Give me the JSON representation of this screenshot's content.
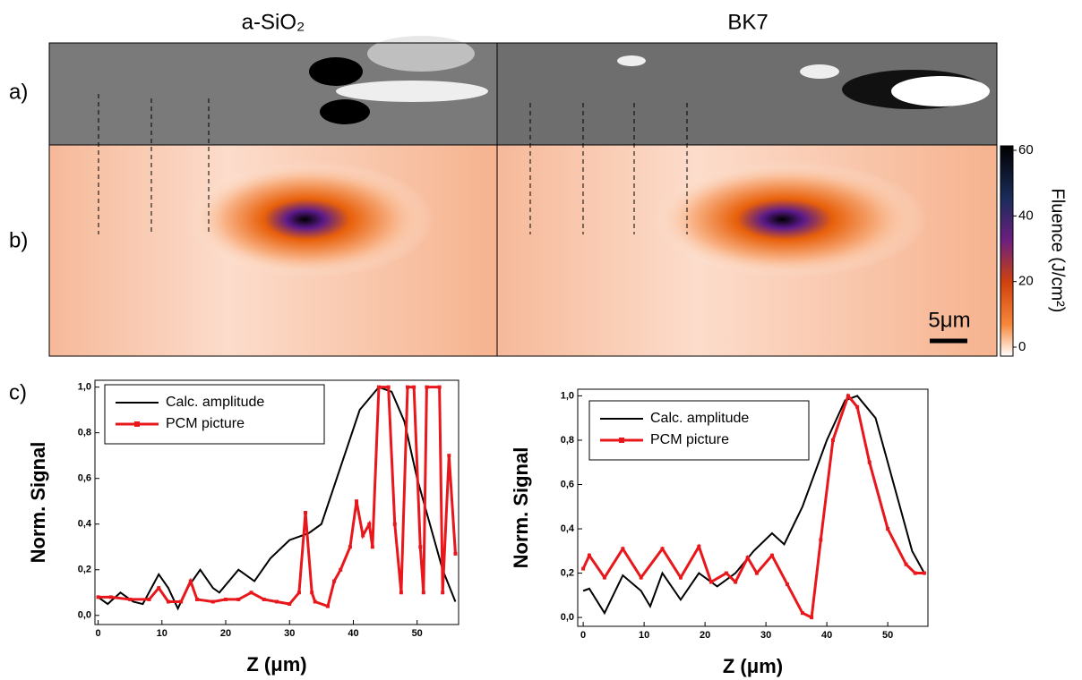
{
  "figure": {
    "titles": [
      "a-SiO₂",
      "BK7"
    ],
    "panel_labels": [
      "a)",
      "b)",
      "c)"
    ],
    "scale_bar": "5μm",
    "colorbar": {
      "label": "Fluence (J/cm²)",
      "lim": [
        0,
        60
      ],
      "ticks": [
        0,
        20,
        40,
        60
      ]
    }
  },
  "chart_data": [
    {
      "type": "line",
      "xlabel": "Z (μm)",
      "ylabel": "Norm. Signal",
      "xlim": [
        -0.5,
        56.5
      ],
      "ylim": [
        -0.04,
        1.03
      ],
      "xticks": [
        0,
        10,
        20,
        30,
        40,
        50
      ],
      "yticks": [
        {
          "value": 0,
          "label": "0,0"
        },
        {
          "value": 0.2,
          "label": "0,2"
        },
        {
          "value": 0.4,
          "label": "0,4"
        },
        {
          "value": 0.6,
          "label": "0,6"
        },
        {
          "value": 0.8,
          "label": "0,8"
        },
        {
          "value": 1,
          "label": "1,0"
        }
      ],
      "series": [
        {
          "name": "Calc. amplitude",
          "color": "#000000",
          "x": [
            0,
            1.5,
            3.5,
            5.5,
            7,
            9.5,
            11,
            12.5,
            14,
            16,
            18,
            19,
            22,
            24.5,
            27,
            30,
            33,
            35,
            38,
            41,
            44,
            46,
            48,
            50,
            52,
            54,
            56
          ],
          "values": [
            0.08,
            0.05,
            0.1,
            0.06,
            0.05,
            0.18,
            0.12,
            0.03,
            0.12,
            0.2,
            0.12,
            0.1,
            0.2,
            0.15,
            0.25,
            0.33,
            0.36,
            0.4,
            0.65,
            0.9,
            1.0,
            0.98,
            0.85,
            0.6,
            0.4,
            0.2,
            0.06
          ]
        },
        {
          "name": "PCM picture",
          "color": "#e8171b",
          "x": [
            0,
            2,
            5,
            8,
            9.5,
            11,
            13,
            14.5,
            15.5,
            18,
            20,
            22,
            24,
            26,
            28,
            30,
            31.5,
            32.5,
            33.5,
            34,
            36,
            37,
            38,
            39.5,
            40.5,
            41.5,
            42.5,
            43,
            44,
            45.5,
            46.5,
            47.5,
            48.5,
            49.5,
            50.5,
            51,
            51.5,
            53.5,
            54,
            55,
            56
          ],
          "values": [
            0.08,
            0.08,
            0.07,
            0.07,
            0.12,
            0.06,
            0.06,
            0.15,
            0.07,
            0.06,
            0.07,
            0.07,
            0.1,
            0.07,
            0.06,
            0.05,
            0.1,
            0.45,
            0.1,
            0.06,
            0.04,
            0.15,
            0.2,
            0.3,
            0.5,
            0.35,
            0.4,
            0.3,
            1.0,
            1.0,
            0.4,
            0.1,
            1.0,
            1.0,
            0.3,
            0.1,
            1.0,
            1.0,
            0.1,
            0.7,
            0.27
          ]
        }
      ]
    },
    {
      "type": "line",
      "xlabel": "Z (μm)",
      "ylabel": "Norm. Signal",
      "xlim": [
        -0.9,
        56.6
      ],
      "ylim": [
        -0.04,
        1.03
      ],
      "xticks": [
        0,
        10,
        20,
        30,
        40,
        50
      ],
      "yticks": [
        {
          "value": 0,
          "label": "0,0"
        },
        {
          "value": 0.2,
          "label": "0,2"
        },
        {
          "value": 0.4,
          "label": "0,4"
        },
        {
          "value": 0.6,
          "label": "0,6"
        },
        {
          "value": 0.8,
          "label": "0,8"
        },
        {
          "value": 1,
          "label": "1,0"
        }
      ],
      "series": [
        {
          "name": "Calc. amplitude",
          "color": "#000000",
          "x": [
            0,
            1,
            3.5,
            6.5,
            9.5,
            11,
            13,
            16,
            19,
            22,
            25,
            28,
            31,
            33,
            36,
            40,
            43,
            45,
            48,
            51,
            54,
            56
          ],
          "values": [
            0.12,
            0.13,
            0.02,
            0.19,
            0.12,
            0.05,
            0.2,
            0.08,
            0.2,
            0.14,
            0.2,
            0.3,
            0.38,
            0.33,
            0.5,
            0.8,
            0.98,
            1.0,
            0.9,
            0.6,
            0.3,
            0.2
          ]
        },
        {
          "name": "PCM picture",
          "color": "#e8171b",
          "x": [
            0,
            1,
            3.5,
            6.5,
            9.5,
            13,
            16,
            19,
            21,
            23.5,
            25,
            27,
            28.5,
            31,
            33.5,
            36,
            37.5,
            39,
            41,
            43.5,
            45,
            47,
            50,
            53,
            54.5,
            56
          ],
          "values": [
            0.22,
            0.28,
            0.18,
            0.31,
            0.18,
            0.31,
            0.18,
            0.32,
            0.16,
            0.2,
            0.16,
            0.27,
            0.2,
            0.28,
            0.15,
            0.02,
            0.0,
            0.35,
            0.8,
            1.0,
            0.95,
            0.7,
            0.4,
            0.24,
            0.2,
            0.2
          ]
        }
      ]
    }
  ]
}
